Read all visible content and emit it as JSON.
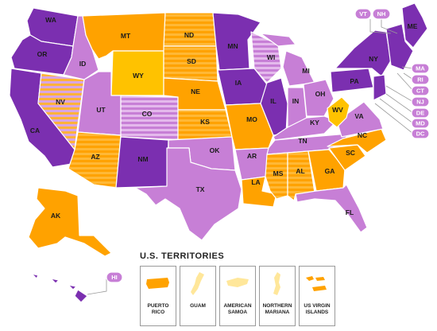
{
  "colors": {
    "purple": "#7b2fb0",
    "lavender": "#c77fd6",
    "orange": "#ffa200",
    "gold": "#ffc200",
    "yellow": "#ffd240",
    "light_tan": "#ffe79a"
  },
  "states": {
    "WA": "WA",
    "OR": "OR",
    "CA": "CA",
    "NV": "NV",
    "ID": "ID",
    "MT": "MT",
    "WY": "WY",
    "UT": "UT",
    "CO": "CO",
    "AZ": "AZ",
    "NM": "NM",
    "ND": "ND",
    "SD": "SD",
    "NE": "NE",
    "KS": "KS",
    "OK": "OK",
    "TX": "TX",
    "MN": "MN",
    "IA": "IA",
    "MO": "MO",
    "AR": "AR",
    "LA": "LA",
    "WI": "WI",
    "IL": "IL",
    "MI": "MI",
    "IN": "IN",
    "OH": "OH",
    "KY": "KY",
    "TN": "TN",
    "MS": "MS",
    "AL": "AL",
    "GA": "GA",
    "FL": "FL",
    "SC": "SC",
    "NC": "NC",
    "VA": "VA",
    "WV": "WV",
    "PA": "PA",
    "NY": "NY",
    "ME": "ME",
    "AK": "AK"
  },
  "callouts": {
    "VT": "VT",
    "NH": "NH",
    "MA": "MA",
    "RI": "RI",
    "CT": "CT",
    "NJ": "NJ",
    "DE": "DE",
    "MD": "MD",
    "DC": "DC",
    "HI": "HI"
  },
  "territories": {
    "title": "U.S. TERRITORIES",
    "items": [
      {
        "line1": "PUERTO",
        "line2": "RICO",
        "color": "#ffa200"
      },
      {
        "line1": "GUAM",
        "line2": "",
        "color": "#ffe79a"
      },
      {
        "line1": "AMERICAN",
        "line2": "SAMOA",
        "color": "#ffe79a"
      },
      {
        "line1": "NORTHERN",
        "line2": "MARIANA",
        "color": "#ffe79a"
      },
      {
        "line1": "US VIRGIN",
        "line2": "ISLANDS",
        "color": "#ffa200"
      }
    ]
  }
}
